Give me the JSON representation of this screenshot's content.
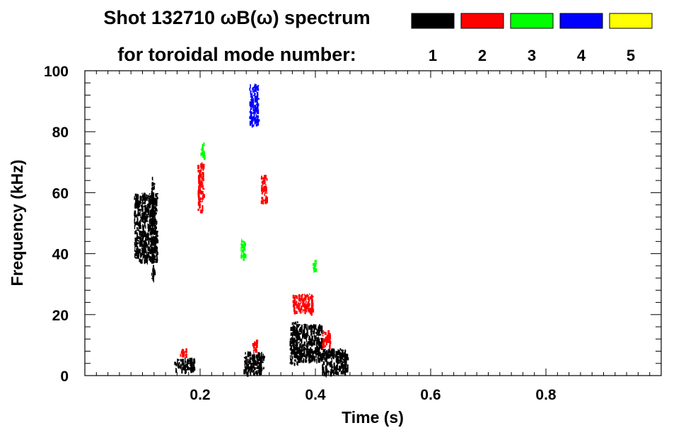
{
  "chart_data": {
    "type": "heatmap",
    "title_line1": "Shot 132710 ωB(ω) spectrum",
    "title_line2": "for toroidal mode number:",
    "xlabel": "Time (s)",
    "ylabel": "Frequency (kHz)",
    "xlim": [
      0.0,
      1.0
    ],
    "ylim": [
      0,
      100
    ],
    "x_ticks": [
      "0.2",
      "0.4",
      "0.6",
      "0.8"
    ],
    "x_tick_values": [
      0.2,
      0.4,
      0.6,
      0.8
    ],
    "y_ticks": [
      "0",
      "20",
      "40",
      "60",
      "80",
      "100"
    ],
    "y_tick_values": [
      0,
      20,
      40,
      60,
      80,
      100
    ],
    "legend_placement": "top-right",
    "legend": [
      {
        "label": "1",
        "color": "#000000"
      },
      {
        "label": "2",
        "color": "#ff0000"
      },
      {
        "label": "3",
        "color": "#00ff00"
      },
      {
        "label": "4",
        "color": "#0000ff"
      },
      {
        "label": "5",
        "color": "#ffff00"
      }
    ],
    "features": [
      {
        "mode": 1,
        "t": [
          0.085,
          0.125
        ],
        "f": [
          38,
          60
        ],
        "color": "#000000"
      },
      {
        "mode": 1,
        "t": [
          0.115,
          0.12
        ],
        "f": [
          32,
          66
        ],
        "color": "#000000"
      },
      {
        "mode": 1,
        "t": [
          0.155,
          0.19
        ],
        "f": [
          2,
          6
        ],
        "color": "#000000"
      },
      {
        "mode": 1,
        "t": [
          0.275,
          0.31
        ],
        "f": [
          1,
          8
        ],
        "color": "#000000"
      },
      {
        "mode": 1,
        "t": [
          0.355,
          0.37
        ],
        "f": [
          4,
          18
        ],
        "color": "#000000"
      },
      {
        "mode": 1,
        "t": [
          0.37,
          0.41
        ],
        "f": [
          5,
          17
        ],
        "color": "#000000"
      },
      {
        "mode": 1,
        "t": [
          0.41,
          0.455
        ],
        "f": [
          1,
          9
        ],
        "color": "#000000"
      },
      {
        "mode": 2,
        "t": [
          0.195,
          0.205
        ],
        "f": [
          54,
          70
        ],
        "color": "#ff0000"
      },
      {
        "mode": 2,
        "t": [
          0.305,
          0.315
        ],
        "f": [
          57,
          66
        ],
        "color": "#ff0000"
      },
      {
        "mode": 2,
        "t": [
          0.36,
          0.395
        ],
        "f": [
          21,
          27
        ],
        "color": "#ff0000"
      },
      {
        "mode": 2,
        "t": [
          0.41,
          0.425
        ],
        "f": [
          10,
          15
        ],
        "color": "#ff0000"
      },
      {
        "mode": 2,
        "t": [
          0.165,
          0.175
        ],
        "f": [
          7,
          9
        ],
        "color": "#ff0000"
      },
      {
        "mode": 2,
        "t": [
          0.29,
          0.298
        ],
        "f": [
          8,
          12
        ],
        "color": "#ff0000"
      },
      {
        "mode": 3,
        "t": [
          0.2,
          0.206
        ],
        "f": [
          72,
          77
        ],
        "color": "#00ff00"
      },
      {
        "mode": 3,
        "t": [
          0.27,
          0.277
        ],
        "f": [
          38,
          45
        ],
        "color": "#00ff00"
      },
      {
        "mode": 3,
        "t": [
          0.395,
          0.4
        ],
        "f": [
          35,
          38
        ],
        "color": "#00ff00"
      },
      {
        "mode": 4,
        "t": [
          0.285,
          0.3
        ],
        "f": [
          82,
          96
        ],
        "color": "#0000ff"
      }
    ]
  }
}
